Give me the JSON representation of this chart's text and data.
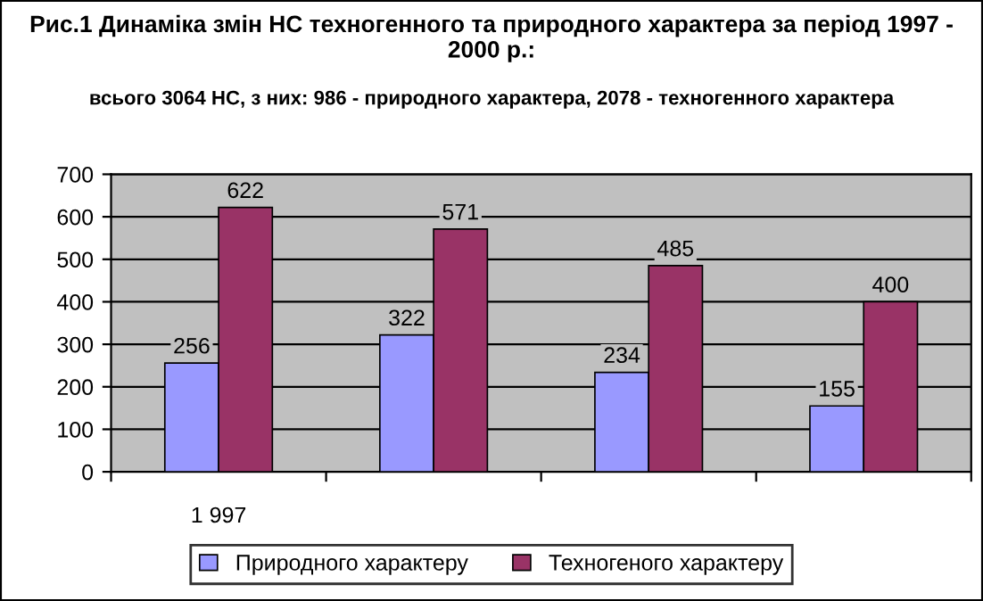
{
  "chart_data": {
    "type": "bar",
    "title": "Рис.1 Динаміка змін НС техногенного та природного характера за період 1997 - 2000 р.:",
    "subtitle": "всього 3064 НС, з них: 986 - природного характера, 2078 - техногенного характера",
    "categories": [
      "1 997",
      null,
      null,
      null
    ],
    "series": [
      {
        "name": "Природного характеру",
        "color": "#9999ff",
        "values": [
          256,
          322,
          234,
          155
        ]
      },
      {
        "name": "Техногеного характеру",
        "color": "#993366",
        "values": [
          622,
          571,
          485,
          400
        ]
      }
    ],
    "ylim": [
      0,
      700
    ],
    "yticks": [
      0,
      100,
      200,
      300,
      400,
      500,
      600,
      700
    ],
    "grid": "y",
    "legend": "bottom",
    "data_labels": true
  }
}
